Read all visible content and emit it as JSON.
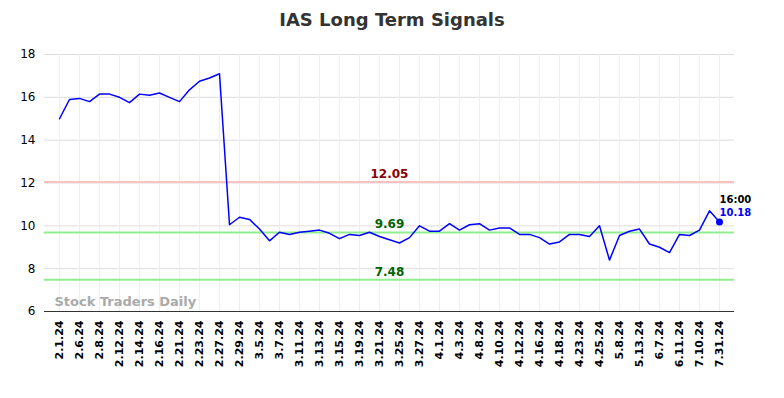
{
  "chart_data": {
    "type": "line",
    "title": "IAS Long Term Signals",
    "categories": [
      "2.1.24",
      null,
      "2.6.24",
      null,
      "2.8.24",
      null,
      "2.12.24",
      null,
      "2.14.24",
      null,
      "2.16.24",
      null,
      "2.21.24",
      null,
      "2.23.24",
      null,
      "2.27.24",
      null,
      "2.29.24",
      null,
      "3.5.24",
      null,
      "3.7.24",
      null,
      "3.11.24",
      null,
      "3.13.24",
      null,
      "3.15.24",
      null,
      "3.19.24",
      null,
      "3.21.24",
      null,
      "3.25.24",
      null,
      "3.27.24",
      null,
      "4.1.24",
      null,
      "4.3.24",
      null,
      "4.8.24",
      null,
      "4.10.24",
      null,
      "4.12.24",
      null,
      "4.16.24",
      null,
      "4.18.24",
      null,
      "4.23.24",
      null,
      "4.25.24",
      null,
      "5.8.24",
      null,
      "5.13.24",
      null,
      "6.7.24",
      null,
      "6.11.24",
      null,
      "7.10.24",
      null,
      "7.31.24"
    ],
    "values": [
      15.0,
      15.9,
      15.95,
      15.8,
      16.15,
      16.15,
      16.0,
      15.75,
      16.15,
      16.1,
      16.2,
      16.0,
      15.8,
      16.35,
      16.75,
      16.9,
      17.1,
      10.05,
      10.4,
      10.3,
      9.85,
      9.3,
      9.7,
      9.6,
      9.7,
      9.75,
      9.8,
      9.65,
      9.4,
      9.6,
      9.55,
      9.7,
      9.5,
      9.35,
      9.2,
      9.45,
      10.0,
      9.75,
      9.75,
      10.1,
      9.8,
      10.05,
      10.1,
      9.8,
      9.9,
      9.9,
      9.6,
      9.6,
      9.45,
      9.15,
      9.25,
      9.6,
      9.6,
      9.5,
      10.0,
      8.4,
      9.55,
      9.75,
      9.85,
      9.15,
      9.0,
      8.75,
      9.6,
      9.55,
      9.8,
      10.7,
      10.18
    ],
    "color": "#0000ff",
    "reference_lines": [
      {
        "value": 12.05,
        "color": "#ffc0c0",
        "text_color": "#8b0000"
      },
      {
        "value": 9.69,
        "color": "#90ee90",
        "text_color": "#006400"
      },
      {
        "value": 7.48,
        "color": "#90ee90",
        "text_color": "#006400"
      }
    ],
    "last_point_label": {
      "time": "16:00",
      "value": 10.18
    },
    "watermark": "Stock Traders Daily",
    "ylim": [
      6,
      18
    ],
    "yticks": [
      6,
      8,
      10,
      12,
      14,
      16,
      18
    ],
    "grid": true
  }
}
